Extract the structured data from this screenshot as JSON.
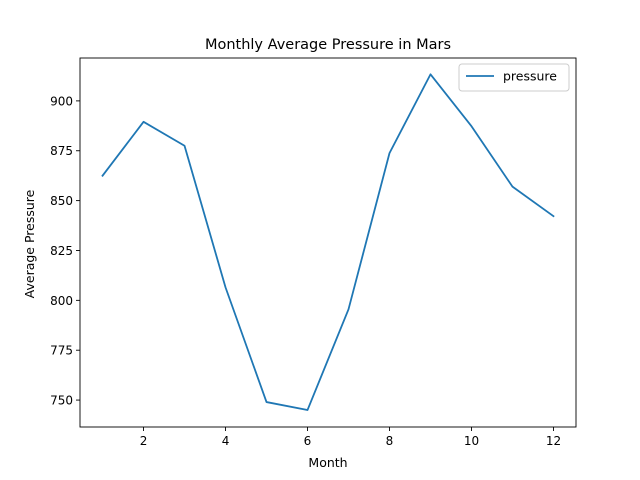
{
  "chart_data": {
    "type": "line",
    "title": "Monthly Average Pressure in Mars",
    "xlabel": "Month",
    "ylabel": "Average Pressure",
    "xlim": [
      0.45,
      12.55
    ],
    "ylim": [
      736.5,
      921.5
    ],
    "xticks": [
      2,
      4,
      6,
      8,
      10,
      12
    ],
    "yticks": [
      750,
      775,
      800,
      825,
      850,
      875,
      900
    ],
    "grid": false,
    "legend_position": "top-right",
    "series": [
      {
        "name": "pressure",
        "color": "#1f77b4",
        "x": [
          1,
          2,
          3,
          4,
          5,
          6,
          7,
          8,
          9,
          10,
          11,
          12
        ],
        "y": [
          862.5,
          889.5,
          877.5,
          806.5,
          749.0,
          745.0,
          795.5,
          873.8,
          913.3,
          887.3,
          857.0,
          842.2
        ]
      }
    ]
  }
}
